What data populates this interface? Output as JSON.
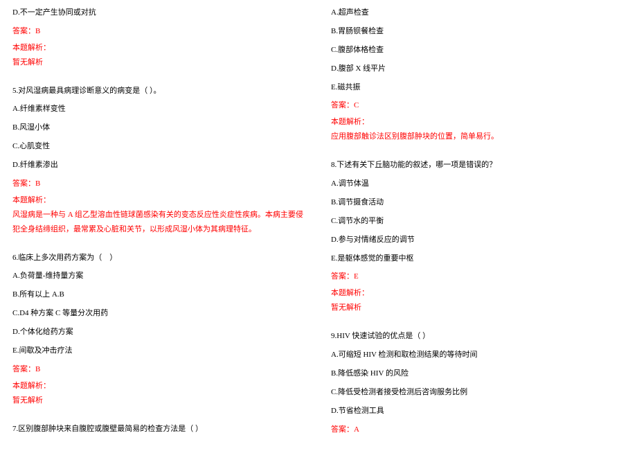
{
  "colors": {
    "text": "#000000",
    "highlight": "#ff0000",
    "background": "#ffffff"
  },
  "typography": {
    "fontSize": 11,
    "fontFamily": "SimSun",
    "lineHeight": 1.9
  },
  "leftColumn": {
    "q4": {
      "optD": "D.不一定产生协同或对抗",
      "answer": "答案：B",
      "analysisLabel": "本题解析：",
      "analysisContent": "暂无解析"
    },
    "q5": {
      "title": "5.对风湿病最具病理诊断意义的病变是（ ）。",
      "optA": "A.纤维素样变性",
      "optB": "B.风湿小体",
      "optC": "C.心肌变性",
      "optD": "D.纤维素渗出",
      "answer": "答案：B",
      "analysisLabel": "本题解析：",
      "analysisContent": "风湿病是一种与 A 组乙型溶血性链球菌感染有关的变态反应性炎症性疾病。本病主要侵犯全身结缔组织，最常累及心脏和关节，以形成风湿小体为其病理特征。"
    },
    "q6": {
      "title": "6.临床上多次用药方案为（　）",
      "optA": "A.负荷量-维持量方案",
      "optB": "B.所有以上 A.B",
      "optC": "C.D4 种方案 C 等量分次用药",
      "optD": "D.个体化给药方案",
      "optE": "E.间歇及冲击疗法",
      "answer": "答案：B",
      "analysisLabel": "本题解析：",
      "analysisContent": "暂无解析"
    },
    "q7": {
      "title": "7.区别腹部肿块来自腹腔或腹壁最简易的检查方法是（ ）"
    }
  },
  "rightColumn": {
    "q7cont": {
      "optA": "A.超声检查",
      "optB": "B.胃肠钡餐检查",
      "optC": "C.腹部体格检查",
      "optD": "D.腹部 X 线平片",
      "optE": "E.磁共振",
      "answer": "答案：C",
      "analysisLabel": "本题解析：",
      "analysisContent": "应用腹部触诊法区别腹部肿块的位置，简单易行。"
    },
    "q8": {
      "title": "8.下述有关下丘脑功能的叙述，哪一项是错误的？",
      "optA": "A.调节体温",
      "optB": "B.调节摄食活动",
      "optC": "C.调节水的平衡",
      "optD": "D.参与对情绪反应的调节",
      "optE": "E.是躯体感觉的重要中枢",
      "answer": "答案：E",
      "analysisLabel": "本题解析：",
      "analysisContent": "暂无解析"
    },
    "q9": {
      "title": "9.HIV 快速试验的优点是（ ）",
      "optA": "A.可缩短 HIV 检测和取检测结果的等待时间",
      "optB": "B.降低感染 HIV 的风险",
      "optC": "C.降低受检测者接受检测后咨询服务比例",
      "optD": "D.节省检测工具",
      "answer": "答案：A"
    }
  }
}
